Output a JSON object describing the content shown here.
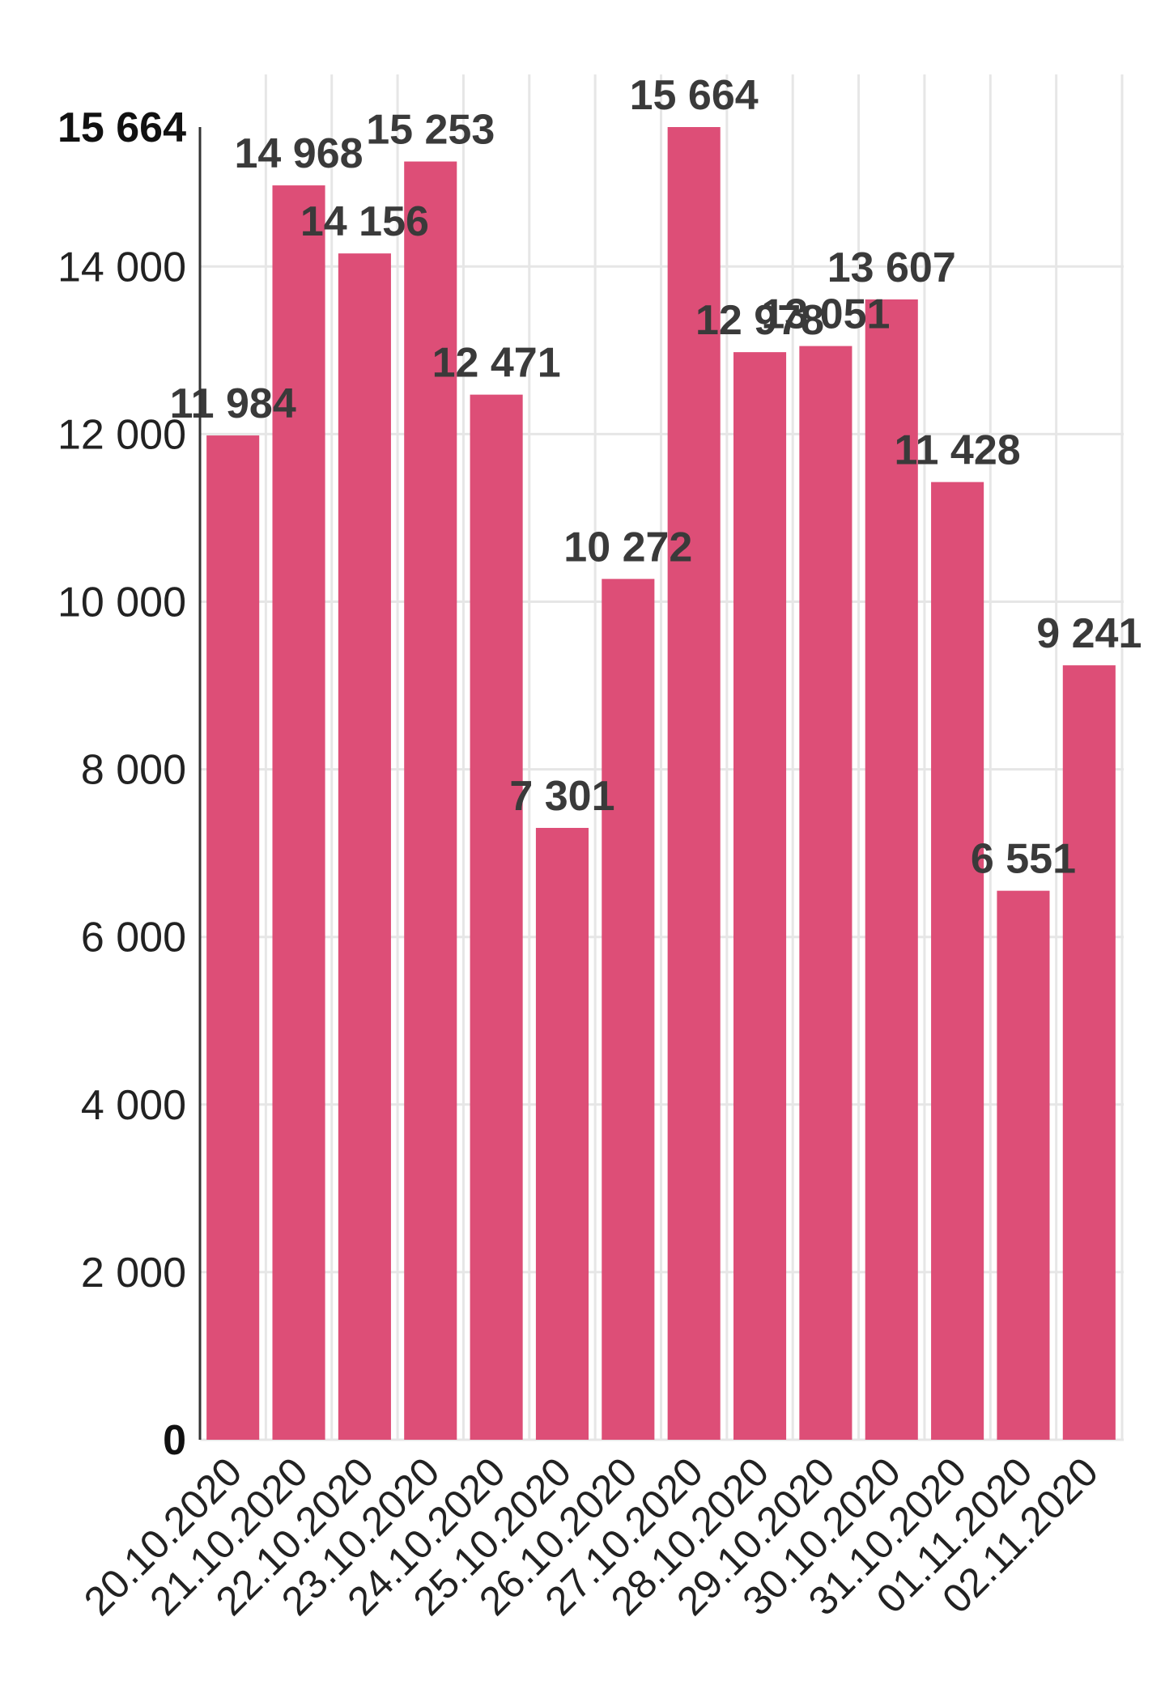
{
  "chart_data": {
    "type": "bar",
    "title": "",
    "xlabel": "",
    "ylabel": "",
    "ylim": [
      0,
      15664
    ],
    "grid": true,
    "bar_color": "#dc4a74",
    "categories": [
      "20.10.2020",
      "21.10.2020",
      "22.10.2020",
      "23.10.2020",
      "24.10.2020",
      "25.10.2020",
      "26.10.2020",
      "27.10.2020",
      "28.10.2020",
      "29.10.2020",
      "30.10.2020",
      "31.10.2020",
      "01.11.2020",
      "02.11.2020"
    ],
    "values": [
      11984,
      14968,
      14156,
      15253,
      12471,
      7301,
      10272,
      15664,
      12978,
      13051,
      13607,
      11428,
      6551,
      9241
    ],
    "data_labels": [
      "11 984",
      "14 968",
      "14 156",
      "15 253",
      "12 471",
      "7 301",
      "10 272",
      "15 664",
      "12 978",
      "13 051",
      "13 607",
      "11 428",
      "6 551",
      "9 241"
    ],
    "y_ticks": [
      {
        "value": 0,
        "label": "0",
        "bold": true
      },
      {
        "value": 2000,
        "label": "2 000",
        "bold": false
      },
      {
        "value": 4000,
        "label": "4 000",
        "bold": false
      },
      {
        "value": 6000,
        "label": "6 000",
        "bold": false
      },
      {
        "value": 8000,
        "label": "8 000",
        "bold": false
      },
      {
        "value": 10000,
        "label": "10 000",
        "bold": false
      },
      {
        "value": 12000,
        "label": "12 000",
        "bold": false
      },
      {
        "value": 14000,
        "label": "14 000",
        "bold": false
      },
      {
        "value": 15664,
        "label": "15 664",
        "bold": true
      }
    ]
  }
}
